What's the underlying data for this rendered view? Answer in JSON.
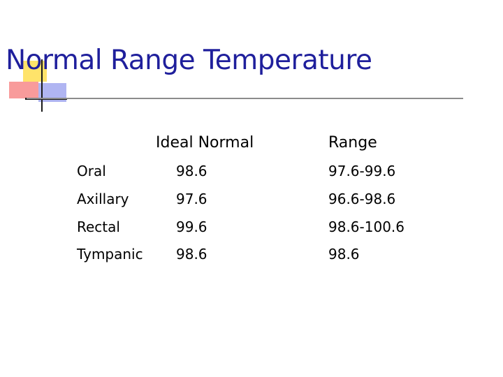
{
  "title": "Normal Range Temperature",
  "table": {
    "headers": {
      "ideal": "Ideal Normal",
      "range": "Range"
    },
    "rows": [
      {
        "site": "Oral",
        "ideal": "98.6",
        "range": "97.6-99.6"
      },
      {
        "site": "Axillary",
        "ideal": "97.6",
        "range": "96.6-98.6"
      },
      {
        "site": "Rectal",
        "ideal": "99.6",
        "range": "98.6-100.6"
      },
      {
        "site": "Tympanic",
        "ideal": "98.6",
        "range": "98.6"
      }
    ]
  },
  "colors": {
    "title": "#1f1f9c",
    "accent_yellow": "#ffe36a",
    "accent_red": "#f89b9b",
    "accent_blue": "#b0b5f2",
    "rule": "#8c8c8c"
  }
}
